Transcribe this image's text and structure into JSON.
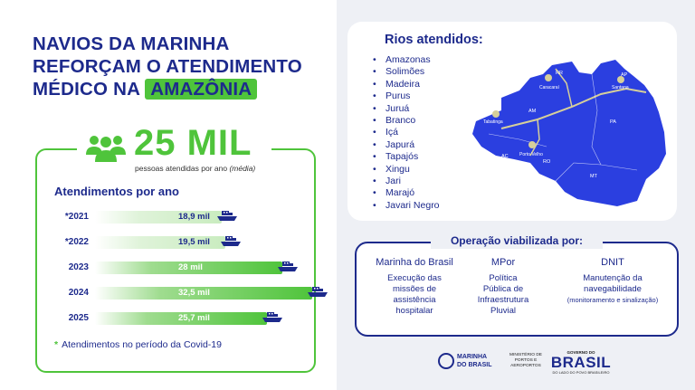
{
  "headline": {
    "line1": "NAVIOS DA MARINHA",
    "line2": "REFORÇAM O ATENDIMENTO",
    "line3_prefix": "MÉDICO NA ",
    "line3_highlight": "AMAZÔNIA"
  },
  "stats": {
    "big_number": "25 MIL",
    "subtitle_main": "pessoas atendidas por ano ",
    "subtitle_italic": "(média)",
    "section_title": "Atendimentos por ano",
    "rows": [
      {
        "year": "*2021",
        "value": "18,9 mil",
        "amount": 18.9,
        "covid": true
      },
      {
        "year": "*2022",
        "value": "19,5 mil",
        "amount": 19.5,
        "covid": true
      },
      {
        "year": "2023",
        "value": "28 mil",
        "amount": 28,
        "covid": false
      },
      {
        "year": "2024",
        "value": "32,5 mil",
        "amount": 32.5,
        "covid": false
      },
      {
        "year": "2025",
        "value": "25,7 mil",
        "amount": 25.7,
        "covid": false
      }
    ],
    "footnote_star": "*",
    "footnote": "Atendimentos no período da Covid-19"
  },
  "rivers": {
    "title": "Rios atendidos:",
    "items": [
      "Amazonas",
      "Solimões",
      "Madeira",
      "Purus",
      "Juruá",
      "Branco",
      "Içá",
      "Japurá",
      "Tapajós",
      "Xingu",
      "Jari",
      "Marajó",
      "Javari Negro"
    ]
  },
  "map": {
    "state_labels": [
      "RR",
      "AP",
      "AM",
      "PA",
      "AC",
      "RO",
      "MT"
    ],
    "cities": [
      "Caracaraí",
      "Santana",
      "Tabatinga",
      "Porto Velho"
    ]
  },
  "operation": {
    "title": "Operação viabilizada por:",
    "orgs": [
      {
        "name": "Marinha do Brasil",
        "desc": [
          "Execução das",
          "missões de",
          "assistência",
          "hospitalar"
        ]
      },
      {
        "name": "MPor",
        "desc": [
          "Política",
          "Pública de",
          "Infraestrutura",
          "Pluvial"
        ]
      },
      {
        "name": "DNIT",
        "desc": [
          "Manutenção da",
          "navegabilidade"
        ],
        "small": "(monitoramento e sinalização)"
      }
    ]
  },
  "logos": {
    "marinha_line1": "MARINHA",
    "marinha_line2": "DO BRASIL",
    "ministerio": [
      "MINISTÉRIO DE",
      "PORTOS E",
      "AEROPORTOS"
    ],
    "gov_top": "GOVERNO DO",
    "gov_main": "BRASIL",
    "gov_bottom": "DO LADO DO POVO BRASILEIRO"
  },
  "colors": {
    "navy": "#1d2a8c",
    "green": "#4fc43b",
    "map_blue": "#2b3fe0",
    "panel_bg": "#eef0f5"
  }
}
